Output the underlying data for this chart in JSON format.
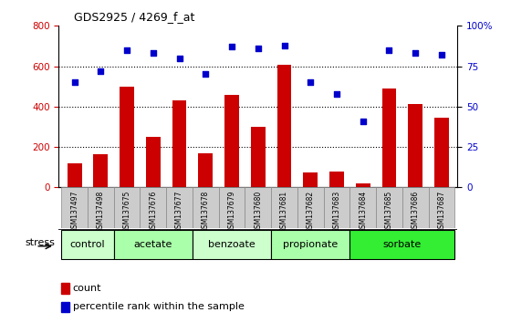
{
  "title": "GDS2925 / 4269_f_at",
  "samples": [
    "GSM137497",
    "GSM137498",
    "GSM137675",
    "GSM137676",
    "GSM137677",
    "GSM137678",
    "GSM137679",
    "GSM137680",
    "GSM137681",
    "GSM137682",
    "GSM137683",
    "GSM137684",
    "GSM137685",
    "GSM137686",
    "GSM137687"
  ],
  "counts": [
    120,
    165,
    500,
    250,
    430,
    170,
    460,
    300,
    605,
    75,
    80,
    20,
    490,
    415,
    345
  ],
  "percentiles": [
    65,
    72,
    85,
    83,
    80,
    70,
    87,
    86,
    88,
    65,
    58,
    41,
    85,
    83,
    82
  ],
  "groups": [
    {
      "label": "control",
      "start": 0,
      "end": 2,
      "color": "#ccffcc"
    },
    {
      "label": "acetate",
      "start": 2,
      "end": 5,
      "color": "#aaffaa"
    },
    {
      "label": "benzoate",
      "start": 5,
      "end": 8,
      "color": "#ccffcc"
    },
    {
      "label": "propionate",
      "start": 8,
      "end": 11,
      "color": "#aaffaa"
    },
    {
      "label": "sorbate",
      "start": 11,
      "end": 15,
      "color": "#33ee33"
    }
  ],
  "bar_color": "#cc0000",
  "dot_color": "#0000cc",
  "ylim_left": [
    0,
    800
  ],
  "ylim_right": [
    0,
    100
  ],
  "yticks_left": [
    0,
    200,
    400,
    600,
    800
  ],
  "yticks_right": [
    0,
    25,
    50,
    75,
    100
  ],
  "yticklabels_right": [
    "0",
    "25",
    "50",
    "75",
    "100%"
  ],
  "bg_color": "#ffffff",
  "xtick_bg": "#cccccc",
  "stress_label": "stress",
  "legend_count": "count",
  "legend_pct": "percentile rank within the sample"
}
